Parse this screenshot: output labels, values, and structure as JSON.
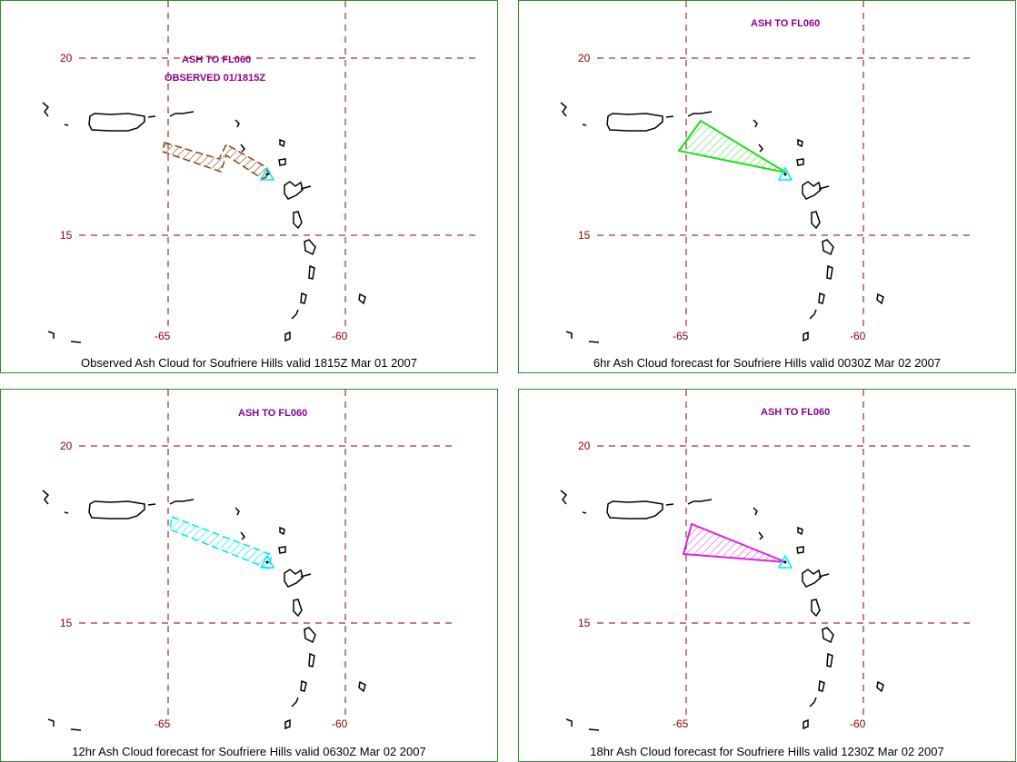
{
  "colors": {
    "grid": "#8b0000",
    "border": "#2e8b2e",
    "ash_label": "#8b008b",
    "volcano": "#00e5ff"
  },
  "panels": [
    {
      "id": "observed",
      "caption": "Observed Ash Cloud for Soufriere  Hills valid 1815Z Mar 01 2007",
      "ash_label": "ASH TO FL060",
      "observed_label": "OBSERVED 01/1815Z",
      "lat_labels": [
        "20",
        "15"
      ],
      "lon_labels": [
        "-65",
        "-60"
      ],
      "cloud_color": "#8b4513",
      "cloud_style": "hatched-band"
    },
    {
      "id": "forecast-6hr",
      "caption": "6hr Ash Cloud forecast for Soufriere  Hills valid 0030Z Mar 02 2007",
      "ash_label": "ASH TO FL060",
      "lat_labels": [
        "20",
        "15"
      ],
      "lon_labels": [
        "-65",
        "-60"
      ],
      "cloud_color": "#22dd22",
      "cloud_style": "hatched-triangle"
    },
    {
      "id": "forecast-12hr",
      "caption": "12hr Ash Cloud forecast for Soufriere  Hills valid 0630Z Mar 02 2007",
      "ash_label": "ASH TO FL060",
      "lat_labels": [
        "20",
        "15"
      ],
      "lon_labels": [
        "-65",
        "-60"
      ],
      "cloud_color": "#00e5ff",
      "cloud_style": "hatched-band"
    },
    {
      "id": "forecast-18hr",
      "caption": "18hr Ash Cloud forecast for Soufriere  Hills valid 1230Z Mar 02 2007",
      "ash_label": "ASH TO FL060",
      "lat_labels": [
        "20",
        "15"
      ],
      "lon_labels": [
        "-65",
        "-60"
      ],
      "cloud_color": "#dd22dd",
      "cloud_style": "hatched-triangle"
    }
  ]
}
